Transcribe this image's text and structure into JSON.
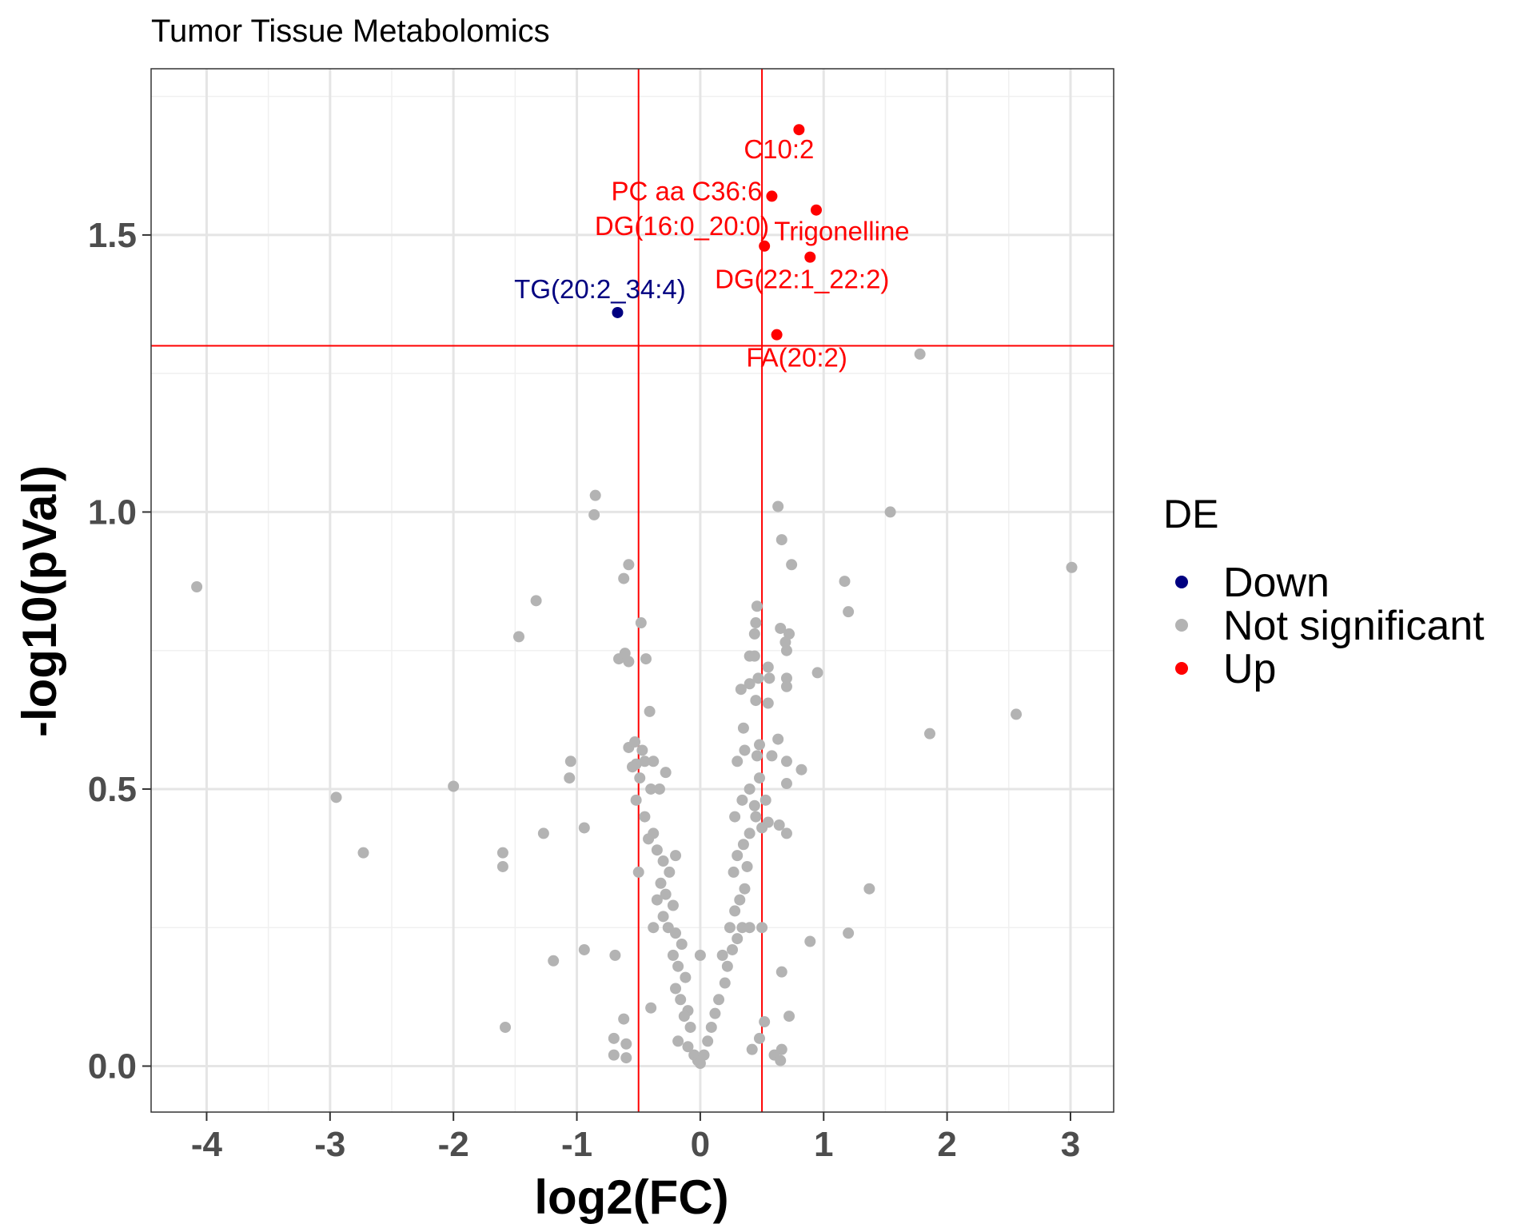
{
  "chart_data": {
    "type": "scatter",
    "title": "Tumor Tissue Metabolomics",
    "xlabel": "log2(FC)",
    "ylabel": "-log10(pVal)",
    "xlim": [
      -4.45,
      3.35
    ],
    "ylim": [
      -0.083,
      1.8
    ],
    "xticks": [
      -4,
      -3,
      -2,
      -1,
      0,
      1,
      2,
      3
    ],
    "xtick_labels": [
      "-4",
      "-3",
      "-2",
      "-1",
      "0",
      "1",
      "2",
      "3"
    ],
    "yticks": [
      0.0,
      0.5,
      1.0,
      1.5
    ],
    "ytick_labels": [
      "0.0",
      "0.5",
      "1.0",
      "1.5"
    ],
    "grid": true,
    "thresholds": {
      "fc": [
        -0.5,
        0.5
      ],
      "neg_log10_p": 1.3,
      "color": "#ff0000"
    },
    "legend": {
      "title": "DE",
      "position": "right",
      "entries": [
        {
          "label": "Down",
          "color": "#000080"
        },
        {
          "label": "Not significant",
          "color": "#b3b3b3"
        },
        {
          "label": "Up",
          "color": "#ff0000"
        }
      ]
    },
    "series": [
      {
        "group": "Down",
        "color": "#000080",
        "points": [
          {
            "x": -0.67,
            "y": 1.36,
            "label": "TG(20:2_34:4)"
          }
        ]
      },
      {
        "group": "Up",
        "color": "#ff0000",
        "points": [
          {
            "x": 0.8,
            "y": 1.69,
            "label": "C10:2"
          },
          {
            "x": 0.58,
            "y": 1.57,
            "label": "PC aa C36:6"
          },
          {
            "x": 0.94,
            "y": 1.545,
            "label": "Trigonelline"
          },
          {
            "x": 0.52,
            "y": 1.48,
            "label": "DG(16:0_20:0)"
          },
          {
            "x": 0.89,
            "y": 1.46,
            "label": "DG(22:1_22:2)"
          },
          {
            "x": 0.62,
            "y": 1.32,
            "label": "FA(20:2)"
          }
        ]
      },
      {
        "group": "Not significant",
        "color": "#b3b3b3",
        "points": [
          [
            -4.08,
            0.865
          ],
          [
            -2.95,
            0.485
          ],
          [
            -2.73,
            0.385
          ],
          [
            -2.0,
            0.505
          ],
          [
            -1.6,
            0.385
          ],
          [
            -1.6,
            0.36
          ],
          [
            -1.58,
            0.07
          ],
          [
            -1.47,
            0.775
          ],
          [
            -1.33,
            0.84
          ],
          [
            -1.27,
            0.42
          ],
          [
            -1.19,
            0.19
          ],
          [
            -1.05,
            0.55
          ],
          [
            -1.06,
            0.52
          ],
          [
            -0.94,
            0.43
          ],
          [
            -0.94,
            0.21
          ],
          [
            -0.85,
            1.03
          ],
          [
            -0.86,
            0.995
          ],
          [
            -0.58,
            0.905
          ],
          [
            -0.62,
            0.88
          ],
          [
            -0.48,
            0.8
          ],
          [
            -0.66,
            0.735
          ],
          [
            -0.61,
            0.745
          ],
          [
            -0.58,
            0.73
          ],
          [
            -0.44,
            0.735
          ],
          [
            -0.41,
            0.64
          ],
          [
            -0.58,
            0.575
          ],
          [
            -0.53,
            0.585
          ],
          [
            -0.47,
            0.57
          ],
          [
            -0.45,
            0.55
          ],
          [
            -0.52,
            0.545
          ],
          [
            -0.55,
            0.54
          ],
          [
            -0.49,
            0.52
          ],
          [
            -0.38,
            0.55
          ],
          [
            -0.28,
            0.53
          ],
          [
            -0.4,
            0.5
          ],
          [
            -0.33,
            0.5
          ],
          [
            -0.52,
            0.48
          ],
          [
            -0.45,
            0.45
          ],
          [
            -0.38,
            0.42
          ],
          [
            -0.42,
            0.41
          ],
          [
            -0.35,
            0.39
          ],
          [
            -0.3,
            0.37
          ],
          [
            -0.2,
            0.38
          ],
          [
            -0.25,
            0.35
          ],
          [
            -0.5,
            0.35
          ],
          [
            -0.32,
            0.33
          ],
          [
            -0.28,
            0.31
          ],
          [
            -0.35,
            0.3
          ],
          [
            -0.22,
            0.29
          ],
          [
            -0.3,
            0.27
          ],
          [
            -0.26,
            0.25
          ],
          [
            -0.38,
            0.25
          ],
          [
            -0.2,
            0.24
          ],
          [
            -0.15,
            0.22
          ],
          [
            -0.22,
            0.2
          ],
          [
            -0.18,
            0.18
          ],
          [
            -0.12,
            0.16
          ],
          [
            -0.2,
            0.14
          ],
          [
            -0.16,
            0.12
          ],
          [
            -0.1,
            0.1
          ],
          [
            -0.4,
            0.105
          ],
          [
            -0.13,
            0.09
          ],
          [
            -0.08,
            0.07
          ],
          [
            -0.18,
            0.045
          ],
          [
            -0.1,
            0.035
          ],
          [
            -0.05,
            0.02
          ],
          [
            -0.02,
            0.01
          ],
          [
            0.0,
            0.005
          ],
          [
            0.03,
            0.02
          ],
          [
            0.06,
            0.045
          ],
          [
            0.09,
            0.07
          ],
          [
            0.12,
            0.095
          ],
          [
            0.0,
            0.2
          ],
          [
            0.15,
            0.12
          ],
          [
            0.2,
            0.15
          ],
          [
            0.22,
            0.18
          ],
          [
            0.18,
            0.2
          ],
          [
            0.26,
            0.21
          ],
          [
            0.3,
            0.23
          ],
          [
            0.24,
            0.25
          ],
          [
            0.34,
            0.25
          ],
          [
            0.4,
            0.25
          ],
          [
            0.28,
            0.28
          ],
          [
            0.32,
            0.3
          ],
          [
            0.36,
            0.32
          ],
          [
            0.27,
            0.35
          ],
          [
            0.38,
            0.36
          ],
          [
            0.3,
            0.38
          ],
          [
            0.35,
            0.4
          ],
          [
            0.4,
            0.42
          ],
          [
            0.28,
            0.45
          ],
          [
            0.44,
            0.47
          ],
          [
            0.34,
            0.48
          ],
          [
            0.4,
            0.5
          ],
          [
            0.48,
            0.52
          ],
          [
            0.3,
            0.55
          ],
          [
            0.36,
            0.57
          ],
          [
            0.46,
            0.56
          ],
          [
            0.35,
            0.61
          ],
          [
            0.45,
            0.66
          ],
          [
            0.33,
            0.68
          ],
          [
            0.4,
            0.69
          ],
          [
            0.55,
            0.72
          ],
          [
            0.4,
            0.74
          ],
          [
            0.44,
            0.74
          ],
          [
            0.47,
            0.7
          ],
          [
            0.44,
            0.78
          ],
          [
            0.45,
            0.8
          ],
          [
            0.46,
            0.83
          ],
          [
            0.65,
            0.79
          ],
          [
            0.72,
            0.78
          ],
          [
            0.69,
            0.765
          ],
          [
            0.7,
            0.75
          ],
          [
            0.7,
            0.7
          ],
          [
            0.7,
            0.685
          ],
          [
            0.56,
            0.7
          ],
          [
            0.55,
            0.655
          ],
          [
            0.63,
            0.59
          ],
          [
            0.48,
            0.58
          ],
          [
            0.58,
            0.56
          ],
          [
            0.7,
            0.55
          ],
          [
            0.82,
            0.535
          ],
          [
            0.7,
            0.51
          ],
          [
            0.53,
            0.48
          ],
          [
            0.55,
            0.44
          ],
          [
            0.7,
            0.42
          ],
          [
            0.5,
            0.43
          ],
          [
            0.45,
            0.45
          ],
          [
            0.64,
            0.435
          ],
          [
            0.5,
            0.25
          ],
          [
            0.66,
            0.17
          ],
          [
            0.72,
            0.09
          ],
          [
            0.52,
            0.08
          ],
          [
            0.48,
            0.05
          ],
          [
            0.6,
            0.02
          ],
          [
            0.66,
            0.03
          ],
          [
            0.65,
            0.01
          ],
          [
            0.42,
            0.03
          ],
          [
            0.89,
            0.225
          ],
          [
            0.95,
            0.71
          ],
          [
            0.63,
            1.01
          ],
          [
            0.66,
            0.95
          ],
          [
            0.74,
            0.905
          ],
          [
            1.17,
            0.875
          ],
          [
            1.2,
            0.82
          ],
          [
            1.2,
            0.24
          ],
          [
            1.37,
            0.32
          ],
          [
            1.54,
            1.0
          ],
          [
            1.78,
            1.285
          ],
          [
            1.86,
            0.6
          ],
          [
            2.56,
            0.635
          ],
          [
            3.01,
            0.9
          ],
          [
            -0.69,
            0.2
          ],
          [
            -0.62,
            0.085
          ],
          [
            -0.7,
            0.05
          ],
          [
            -0.6,
            0.04
          ],
          [
            -0.7,
            0.02
          ],
          [
            -0.6,
            0.015
          ]
        ]
      }
    ]
  }
}
